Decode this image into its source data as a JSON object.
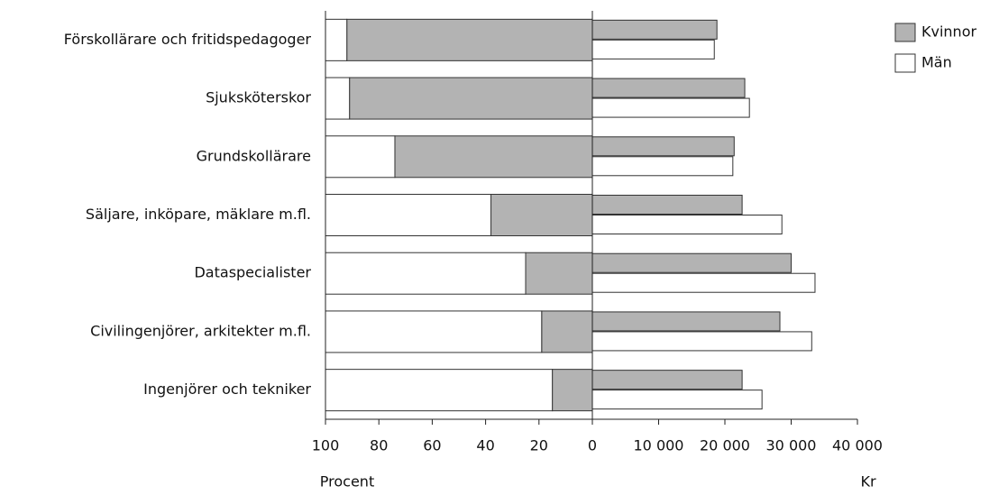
{
  "chart_data": {
    "type": "bar",
    "categories": [
      "Förskollärare och fritidspedagoger",
      "Sjuksköterskor",
      "Grundskollärare",
      "Säljare, inköpare, mäklare m.fl.",
      "Dataspecialister",
      "Civilingenjörer, arkitekter m.fl.",
      "Ingenjörer och tekniker"
    ],
    "series": [
      {
        "name": "Kvinnor",
        "color": "#b3b3b3",
        "share": [
          92,
          91,
          74,
          38,
          25,
          19,
          15
        ],
        "values": [
          18800,
          23000,
          21400,
          22600,
          30000,
          28300,
          22600
        ]
      },
      {
        "name": "Män",
        "color": "#ffffff",
        "share": [
          8,
          9,
          26,
          62,
          75,
          81,
          85
        ],
        "values": [
          18400,
          23700,
          21200,
          28600,
          33600,
          33100,
          25600
        ]
      }
    ],
    "xlim": [
      100,
      0
    ],
    "xticks": [
      100,
      80,
      60,
      40,
      20,
      0
    ],
    "xlabel": "Procent",
    "x2lim": [
      0,
      40000
    ],
    "x2ticks": [
      0,
      {
        "value": 10000,
        "label": "10 000"
      },
      {
        "value": 20000,
        "label": "20 000"
      },
      {
        "value": 30000,
        "label": "30 000"
      },
      {
        "value": 40000,
        "label": "40 000"
      }
    ],
    "x2label": "Kr"
  }
}
